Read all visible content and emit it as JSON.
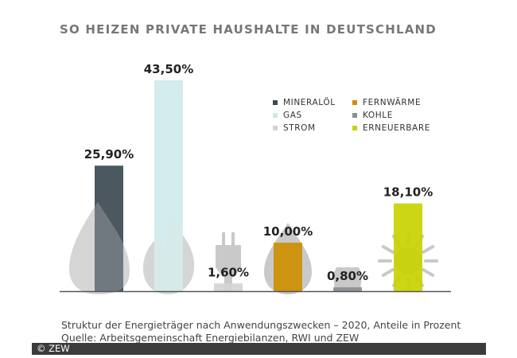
{
  "chart_data": {
    "type": "bar",
    "title": "SO HEIZEN PRIVATE HAUSHALTE IN DEUTSCHLAND",
    "categories": [
      "Mineralöl",
      "Gas",
      "Strom",
      "Fernwärme",
      "Kohle",
      "Erneuerbare"
    ],
    "values": [
      25.9,
      43.5,
      1.6,
      10.0,
      0.8,
      18.1
    ],
    "value_labels": [
      "25,90%",
      "43,50%",
      "1,60%",
      "10,00%",
      "0,80%",
      "18,10%"
    ],
    "legend": [
      "MINERALÖL",
      "GAS",
      "STROM",
      "FERNWÄRME",
      "KOHLE",
      "ERNEUERBARE"
    ],
    "colors": [
      "#3d4a52",
      "#cbe9ea",
      "#d4d4d4",
      "#cc8f00",
      "#8a8f94",
      "#c8d300"
    ],
    "icons": [
      "drop-icon",
      "flame-icon",
      "plug-icon",
      "flame-drop-icon",
      "coal-icon",
      "sun-icon"
    ],
    "legend_position": "top-right",
    "ylim": [
      0,
      45
    ],
    "grid": false,
    "xlabel": "",
    "ylabel": ""
  },
  "caption": "Struktur der Energieträger nach Anwendungszwecken – 2020, Anteile in Prozent",
  "source": "Quelle: Arbeitsgemeinschaft Energiebilanzen, RWI und ZEW",
  "copyright": "© ZEW"
}
